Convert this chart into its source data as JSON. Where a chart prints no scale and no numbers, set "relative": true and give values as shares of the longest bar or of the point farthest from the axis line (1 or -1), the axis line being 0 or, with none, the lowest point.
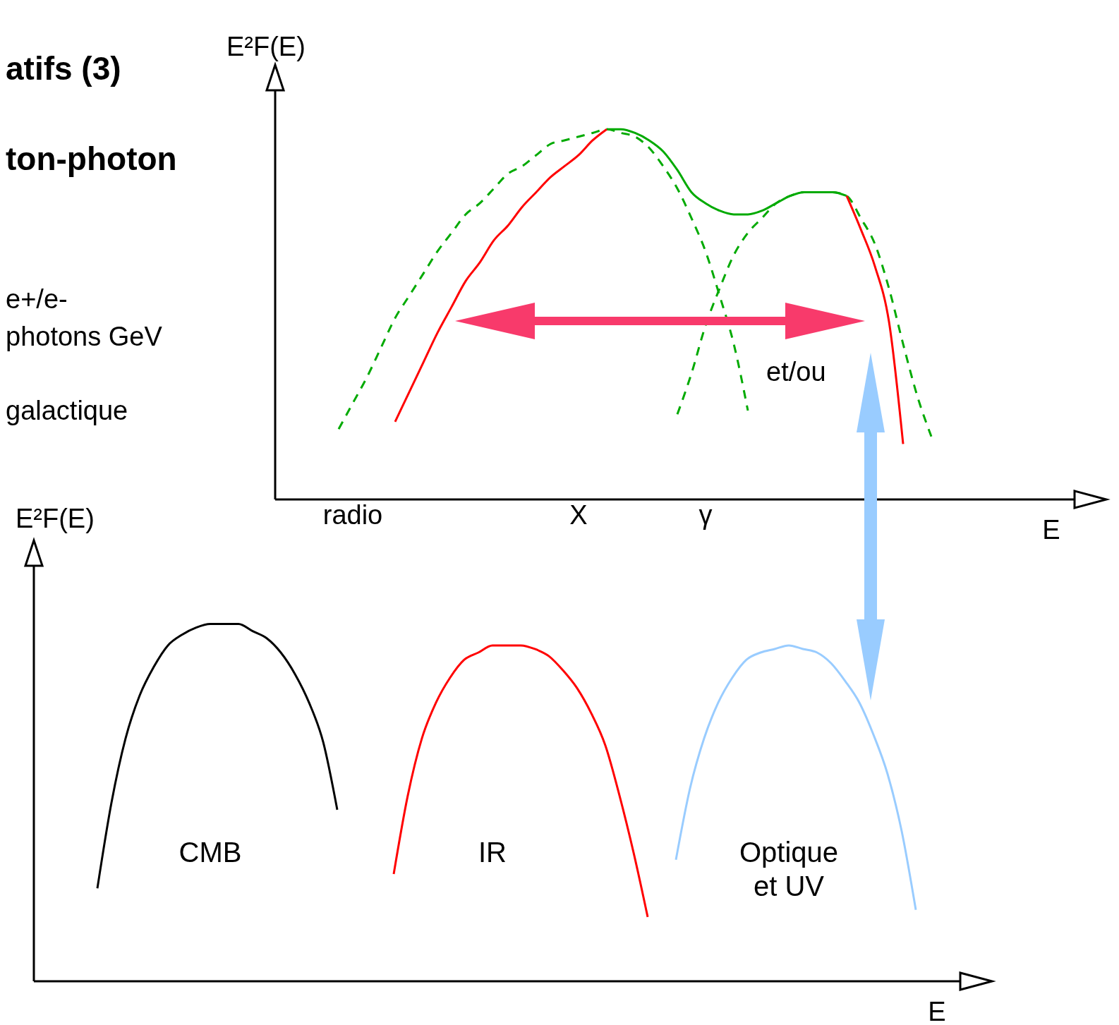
{
  "chart_data": [
    {
      "type": "line",
      "relative": true,
      "marker": "none",
      "xlabel": "E",
      "ylabel": "E²F(E)",
      "annotations": [
        "atifs (3)",
        "ton-photon",
        "e+/e-",
        "photons GeV",
        "galactique",
        "et/ou"
      ],
      "categories": [
        null,
        null,
        null,
        null,
        null,
        "radio",
        null,
        null,
        null,
        null,
        null,
        null,
        null,
        null,
        null,
        null,
        null,
        null,
        null,
        null,
        null,
        "X",
        null,
        null,
        null,
        null,
        null,
        null,
        null,
        null,
        "γ",
        null,
        null,
        null,
        null,
        null,
        null,
        null,
        null,
        null,
        null,
        null,
        null,
        null,
        null,
        null,
        null,
        null,
        null,
        null,
        null,
        null,
        null,
        null,
        null,
        null,
        null
      ],
      "series": [
        {
          "color": "#00aa00",
          "line_style": "dashed",
          "values": [
            null,
            null,
            null,
            null,
            0.19,
            0.26,
            0.33,
            0.41,
            0.49,
            0.55,
            0.61,
            0.67,
            0.72,
            0.77,
            0.8,
            0.84,
            0.88,
            0.9,
            0.93,
            0.96,
            0.97,
            0.98,
            0.99,
            1.0,
            0.99,
            0.98,
            0.95,
            0.9,
            0.84,
            0.76,
            0.67,
            0.55,
            0.42,
            0.24,
            null,
            null,
            null,
            null,
            null,
            null,
            null,
            null,
            null,
            null,
            null,
            null,
            null,
            null,
            null,
            null,
            null,
            null,
            null,
            null,
            null,
            null,
            null
          ]
        },
        {
          "color": "#00aa00",
          "line_style": "dashed",
          "values": [
            null,
            null,
            null,
            null,
            null,
            null,
            null,
            null,
            null,
            null,
            null,
            null,
            null,
            null,
            null,
            null,
            null,
            null,
            null,
            null,
            null,
            null,
            null,
            null,
            null,
            null,
            null,
            null,
            0.23,
            0.34,
            0.47,
            0.57,
            0.66,
            0.72,
            0.76,
            0.8,
            0.82,
            0.83,
            0.83,
            0.83,
            0.82,
            0.76,
            0.69,
            0.57,
            0.42,
            0.28,
            0.17,
            null,
            null,
            null,
            null,
            null,
            null,
            null,
            null,
            null,
            null
          ]
        },
        {
          "color": "#00aa00",
          "line_style": "solid",
          "values": [
            null,
            null,
            null,
            null,
            null,
            null,
            null,
            null,
            null,
            null,
            null,
            null,
            null,
            null,
            null,
            null,
            null,
            null,
            null,
            null,
            null,
            null,
            null,
            1.0,
            1.0,
            0.99,
            0.97,
            0.94,
            0.89,
            0.83,
            0.8,
            0.78,
            0.77,
            0.77,
            0.78,
            0.8,
            0.82,
            0.83,
            0.83,
            0.83,
            0.82,
            null,
            null,
            null,
            null,
            null,
            null,
            null,
            null,
            null,
            null,
            null,
            null,
            null,
            null,
            null,
            null
          ]
        },
        {
          "color": "#ff0000",
          "line_style": "solid",
          "values": [
            null,
            null,
            null,
            null,
            null,
            null,
            null,
            null,
            0.21,
            0.29,
            0.37,
            0.45,
            0.52,
            0.59,
            0.64,
            0.7,
            0.74,
            0.79,
            0.83,
            0.87,
            0.9,
            0.93,
            0.97,
            1.0,
            null,
            null,
            null,
            null,
            null,
            null,
            null,
            null,
            null,
            null,
            null,
            null,
            null,
            null,
            null,
            null,
            0.82,
            0.73,
            0.63,
            0.48,
            0.15,
            null,
            null,
            null,
            null,
            null,
            null,
            null,
            null,
            null,
            null,
            null,
            null
          ]
        }
      ]
    },
    {
      "type": "line",
      "relative": true,
      "marker": "none",
      "xlabel": "E",
      "ylabel": "E²F(E)",
      "categories": [
        null,
        null,
        null,
        null,
        null,
        null,
        null,
        null,
        null,
        null,
        null,
        null,
        null,
        null,
        null,
        null,
        null,
        null,
        null,
        null,
        null,
        null,
        null,
        null,
        null,
        null,
        null,
        null,
        null,
        null,
        null,
        null,
        null,
        null,
        null,
        null,
        null,
        null,
        null,
        null,
        null,
        null,
        null,
        null,
        null,
        null,
        null,
        null,
        null,
        null,
        null,
        null,
        null,
        null,
        null,
        null,
        null,
        null,
        null,
        null,
        null,
        null,
        null,
        null,
        null,
        null
      ],
      "series": [
        {
          "name": "CMB",
          "color": "#000000",
          "line_style": "solid",
          "values": [
            null,
            null,
            null,
            null,
            0.26,
            0.5,
            0.68,
            0.8,
            0.88,
            0.94,
            0.97,
            0.99,
            1.0,
            1.0,
            1.0,
            0.98,
            0.96,
            0.92,
            0.86,
            0.78,
            0.67,
            0.48,
            null,
            null,
            null,
            null,
            null,
            null,
            null,
            null,
            null,
            null,
            null,
            null,
            null,
            null,
            null,
            null,
            null,
            null,
            null,
            null,
            null,
            null,
            null,
            null,
            null,
            null,
            null,
            null,
            null,
            null,
            null,
            null,
            null,
            null,
            null,
            null,
            null,
            null,
            null,
            null,
            null,
            null,
            null,
            null
          ]
        },
        {
          "name": "IR",
          "color": "#ff0000",
          "line_style": "solid",
          "values": [
            null,
            null,
            null,
            null,
            null,
            null,
            null,
            null,
            null,
            null,
            null,
            null,
            null,
            null,
            null,
            null,
            null,
            null,
            null,
            null,
            null,
            null,
            null,
            null,
            null,
            0.3,
            0.52,
            0.68,
            0.78,
            0.85,
            0.9,
            0.92,
            0.94,
            0.94,
            0.94,
            0.93,
            0.91,
            0.87,
            0.82,
            0.75,
            0.66,
            0.52,
            0.36,
            0.18,
            null,
            null,
            null,
            null,
            null,
            null,
            null,
            null,
            null,
            null,
            null,
            null,
            null,
            null,
            null,
            null,
            null,
            null,
            null,
            null,
            null,
            null
          ]
        },
        {
          "name": "Optique et UV",
          "color": "#99ccff",
          "line_style": "solid",
          "values": [
            null,
            null,
            null,
            null,
            null,
            null,
            null,
            null,
            null,
            null,
            null,
            null,
            null,
            null,
            null,
            null,
            null,
            null,
            null,
            null,
            null,
            null,
            null,
            null,
            null,
            null,
            null,
            null,
            null,
            null,
            null,
            null,
            null,
            null,
            null,
            null,
            null,
            null,
            null,
            null,
            null,
            null,
            null,
            null,
            null,
            0.34,
            0.54,
            0.68,
            0.78,
            0.85,
            0.9,
            0.92,
            0.93,
            0.94,
            0.93,
            0.92,
            0.89,
            0.84,
            0.78,
            0.69,
            0.58,
            0.42,
            0.2,
            null,
            null,
            null
          ]
        }
      ]
    }
  ]
}
